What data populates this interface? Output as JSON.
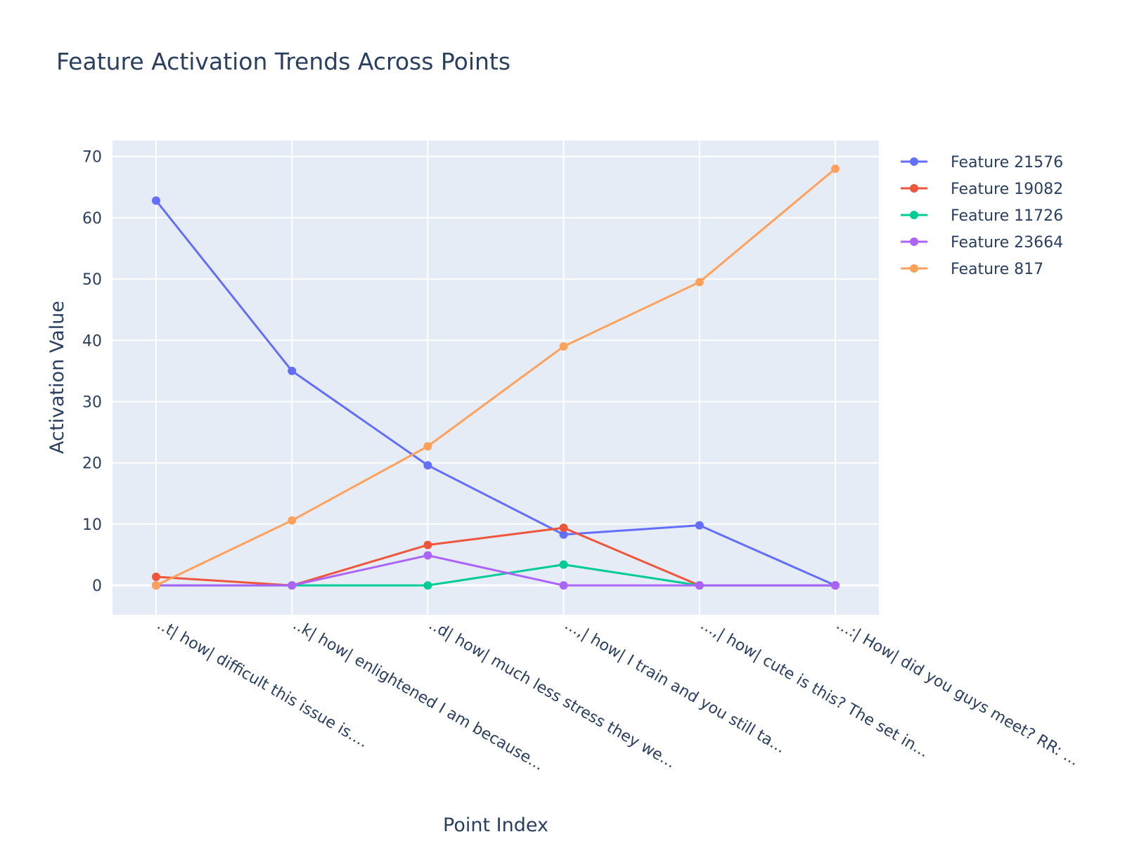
{
  "chart_data": {
    "type": "line",
    "title": "Feature Activation Trends Across Points",
    "xlabel": "Point Index",
    "ylabel": "Activation Value",
    "ylim": [
      -4.8,
      72.6
    ],
    "yticks": [
      0,
      10,
      20,
      30,
      40,
      50,
      60,
      70
    ],
    "grid": true,
    "legend_position": "top-right",
    "categories": [
      "..t| how| difficult this issue is....",
      "..k| how| enlightened I am because...",
      "..d| how| much less stress they we...",
      "...,| how| I train and you still ta...",
      "...,| how| cute is this? The set in...",
      "...:| How| did you guys meet?  RR: ..."
    ],
    "series": [
      {
        "name": "Feature 21576",
        "color": "#636efa",
        "values": [
          62.8,
          35.0,
          19.6,
          8.3,
          9.8,
          0.0
        ]
      },
      {
        "name": "Feature 19082",
        "color": "#ef553b",
        "values": [
          1.4,
          0.0,
          6.6,
          9.4,
          0.0,
          0.0
        ]
      },
      {
        "name": "Feature 11726",
        "color": "#00cc96",
        "values": [
          0.0,
          0.0,
          0.0,
          3.4,
          0.0,
          0.0
        ]
      },
      {
        "name": "Feature 23664",
        "color": "#ab63fa",
        "values": [
          0.0,
          0.0,
          4.9,
          0.0,
          0.0,
          0.0
        ]
      },
      {
        "name": "Feature 817",
        "color": "#ffa15a",
        "values": [
          0.0,
          10.6,
          22.7,
          39.0,
          49.5,
          68.0
        ]
      }
    ]
  }
}
